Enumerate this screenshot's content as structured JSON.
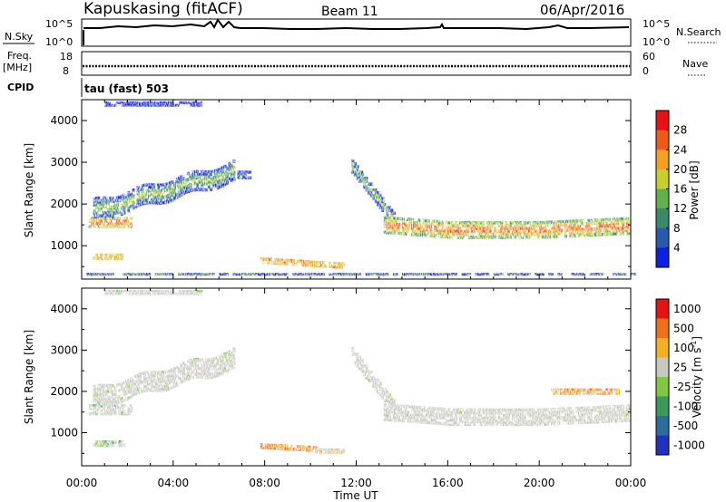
{
  "header": {
    "station": "Kapuskasing (fitACF)",
    "beam": "Beam 11",
    "date": "06/Apr/2016"
  },
  "status_rows": {
    "nsky_label": "N.Sky",
    "nsky_ticks": [
      "10^5",
      "10^0"
    ],
    "nsearch_label": "N.Search",
    "nsearch_ticks": [
      "10^5",
      "10^0"
    ],
    "freq_label": "Freq.",
    "freq_unit": "[MHz]",
    "freq_ticks": [
      "18",
      "8"
    ],
    "nave_label": "Nave",
    "nave_ticks": [
      "60",
      "0"
    ],
    "cpid_label": "CPID",
    "cpid_value": "tau (fast) 503"
  },
  "chart_data": [
    {
      "type": "heatmap",
      "title": "Power",
      "ylabel": "Slant Range [km]",
      "xlabel": "Time UT",
      "x_ticks": [
        "00:00",
        "04:00",
        "08:00",
        "12:00",
        "16:00",
        "20:00",
        "00:00"
      ],
      "y_ticks": [
        1000,
        2000,
        3000,
        4000
      ],
      "xlim_hours": [
        0,
        24
      ],
      "ylim_km": [
        200,
        4500
      ],
      "colorbar_label": "Power [dB]",
      "colorbar_ticks": [
        4,
        8,
        12,
        16,
        20,
        24,
        28
      ],
      "colorbar_colors": [
        "#1020e0",
        "#2a58b0",
        "#3a8a6a",
        "#62b04a",
        "#c8cf2a",
        "#f5a020",
        "#f05a18",
        "#e81010"
      ],
      "echo_regions": [
        {
          "t0": 0.3,
          "t1": 2.0,
          "r0": 1350,
          "r1": 1750,
          "level": "red-orange"
        },
        {
          "t0": 1.0,
          "t1": 6.5,
          "r0": 1800,
          "r1": 2900,
          "level": "green-blue"
        },
        {
          "t0": 0.5,
          "t1": 2.0,
          "r0": 650,
          "r1": 850,
          "level": "red-orange"
        },
        {
          "t0": 7.8,
          "t1": 11.5,
          "r0": 450,
          "r1": 800,
          "level": "red-orange"
        },
        {
          "t0": 12.0,
          "t1": 24.0,
          "r0": 1150,
          "r1": 1800,
          "level": "red-orange"
        }
      ]
    },
    {
      "type": "heatmap",
      "title": "Velocity",
      "ylabel": "Slant Range [km]",
      "xlabel": "Time UT",
      "x_ticks": [
        "00:00",
        "04:00",
        "08:00",
        "12:00",
        "16:00",
        "20:00",
        "00:00"
      ],
      "y_ticks": [
        1000,
        2000,
        3000,
        4000
      ],
      "xlim_hours": [
        0,
        24
      ],
      "ylim_km": [
        200,
        4500
      ],
      "colorbar_label": "Velocity [m s",
      "colorbar_unit_exp": "-1",
      "colorbar_unit_close": "]",
      "colorbar_ticks": [
        "1000",
        "500",
        "100",
        "25",
        "-25",
        "-100",
        "-500",
        "-1000"
      ],
      "colorbar_colors": [
        "#2030c0",
        "#2a6ea0",
        "#3a9a5a",
        "#80c840",
        "#c8c8c0",
        "#f5b020",
        "#f07018",
        "#e81010"
      ],
      "ground_scatter_color": "#c8c8c0"
    }
  ]
}
